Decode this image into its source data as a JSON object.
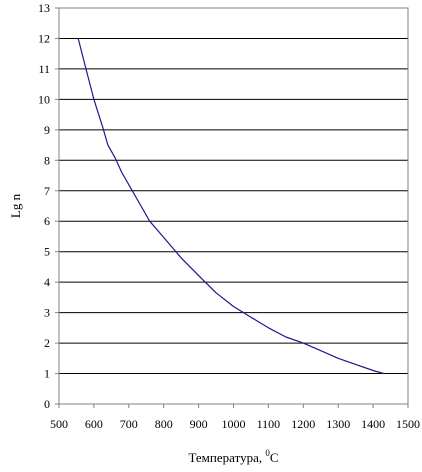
{
  "chart_data": {
    "type": "line",
    "title": "",
    "xlabel": "Температура, ",
    "xlabel_superscript": "0",
    "xlabel_unit": "C",
    "ylabel": "Lg n",
    "xlim": [
      500,
      1500
    ],
    "ylim": [
      0,
      13
    ],
    "x_ticks": [
      500,
      600,
      700,
      800,
      900,
      1000,
      1100,
      1200,
      1300,
      1400,
      1500
    ],
    "y_ticks": [
      0,
      1,
      2,
      3,
      4,
      5,
      6,
      7,
      8,
      9,
      10,
      11,
      12,
      13
    ],
    "grid": "horizontal",
    "legend": "none",
    "line_color": "#1a1a8c",
    "series": [
      {
        "x": [
          555,
          575,
          600,
          625,
          640,
          660,
          680,
          700,
          730,
          760,
          790,
          820,
          850,
          880,
          910,
          950,
          1000,
          1050,
          1100,
          1150,
          1200,
          1250,
          1300,
          1350,
          1400,
          1430
        ],
        "y": [
          12.0,
          11.1,
          10.0,
          9.1,
          8.5,
          8.1,
          7.6,
          7.2,
          6.6,
          6.0,
          5.6,
          5.2,
          4.8,
          4.45,
          4.1,
          3.65,
          3.2,
          2.85,
          2.5,
          2.2,
          2.0,
          1.75,
          1.5,
          1.3,
          1.1,
          1.0
        ]
      }
    ]
  }
}
